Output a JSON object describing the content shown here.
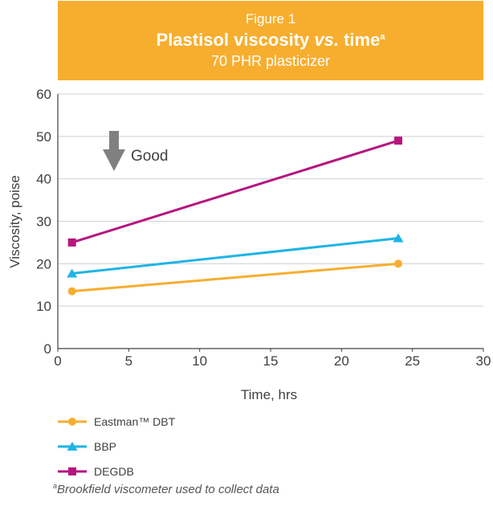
{
  "figure_label": "Figure 1",
  "title_main": "Plastisol viscosity ",
  "title_vs": "vs.",
  "title_rest": " time",
  "title_sup": "a",
  "subtitle": "70 PHR plasticizer",
  "annotation": "Good",
  "footnote_sup": "a",
  "footnote": "Brookfield viscometer used to collect data",
  "chart_data": {
    "type": "line",
    "xlabel": "Time, hrs",
    "ylabel": "Viscosity, poise",
    "xlim": [
      0,
      30
    ],
    "ylim": [
      0,
      60
    ],
    "x_ticks": [
      0,
      5,
      10,
      15,
      20,
      25,
      30
    ],
    "y_ticks": [
      0,
      10,
      20,
      30,
      40,
      50,
      60
    ],
    "grid": "horizontal",
    "legend_position": "bottom",
    "series": [
      {
        "name": "Eastman™ DBT",
        "color": "#f7ae2f",
        "marker": "circle",
        "x": [
          1,
          24
        ],
        "y": [
          13.5,
          20
        ]
      },
      {
        "name": "BBP",
        "color": "#1eb4e6",
        "marker": "triangle",
        "x": [
          1,
          24
        ],
        "y": [
          17.7,
          26
        ]
      },
      {
        "name": "DEGDB",
        "color": "#b5167e",
        "marker": "square",
        "x": [
          1,
          24
        ],
        "y": [
          25,
          49
        ]
      }
    ]
  }
}
